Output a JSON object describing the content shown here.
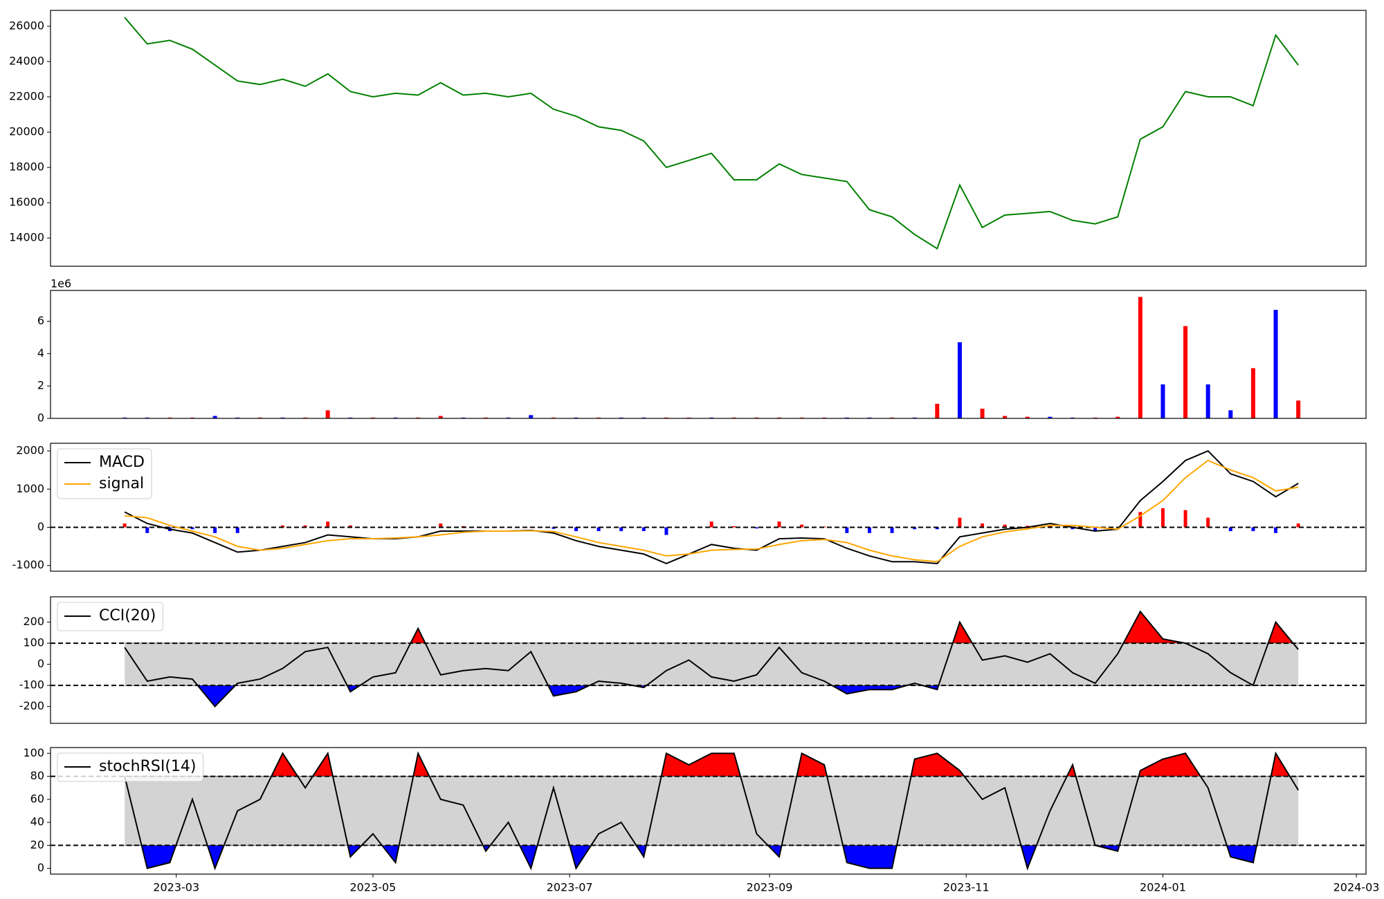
{
  "chart_data": [
    {
      "type": "line",
      "color": "green",
      "x": [
        "2023-02-13",
        "2023-02-20",
        "2023-02-27",
        "2023-03-06",
        "2023-03-13",
        "2023-03-20",
        "2023-03-27",
        "2023-04-03",
        "2023-04-10",
        "2023-04-17",
        "2023-04-24",
        "2023-05-01",
        "2023-05-08",
        "2023-05-15",
        "2023-05-22",
        "2023-05-29",
        "2023-06-05",
        "2023-06-12",
        "2023-06-19",
        "2023-06-26",
        "2023-07-03",
        "2023-07-10",
        "2023-07-17",
        "2023-07-24",
        "2023-07-31",
        "2023-08-07",
        "2023-08-14",
        "2023-08-21",
        "2023-08-28",
        "2023-09-04",
        "2023-09-11",
        "2023-09-18",
        "2023-09-25",
        "2023-10-02",
        "2023-10-09",
        "2023-10-16",
        "2023-10-23",
        "2023-10-30",
        "2023-11-06",
        "2023-11-13",
        "2023-11-20",
        "2023-11-27",
        "2023-12-04",
        "2023-12-11",
        "2023-12-18",
        "2023-12-25",
        "2024-01-01",
        "2024-01-08",
        "2024-01-15",
        "2024-01-22",
        "2024-01-29",
        "2024-02-05",
        "2024-02-12"
      ],
      "values": [
        26500,
        25000,
        25200,
        24700,
        23800,
        22900,
        22700,
        23000,
        22600,
        23300,
        22300,
        22000,
        22200,
        22100,
        22800,
        22100,
        22200,
        22000,
        22200,
        21300,
        20900,
        20300,
        20100,
        19500,
        18000,
        18400,
        18800,
        17300,
        17300,
        18200,
        17600,
        17400,
        17200,
        15600,
        15200,
        14200,
        13400,
        17000,
        14600,
        15300,
        15400,
        15500,
        15000,
        14800,
        15200,
        19600,
        20300,
        22300,
        22000,
        22000,
        21500,
        25500,
        23800
      ],
      "xlim": [
        "2023-01-21",
        "2024-03-04"
      ],
      "ylim": [
        12400,
        26900
      ],
      "yticks": [
        14000,
        16000,
        18000,
        20000,
        22000,
        24000,
        26000
      ]
    },
    {
      "type": "bar",
      "offset_label": "1e6",
      "x": [
        "2023-02-13",
        "2023-02-20",
        "2023-02-27",
        "2023-03-06",
        "2023-03-13",
        "2023-03-20",
        "2023-03-27",
        "2023-04-03",
        "2023-04-10",
        "2023-04-17",
        "2023-04-24",
        "2023-05-01",
        "2023-05-08",
        "2023-05-15",
        "2023-05-22",
        "2023-05-29",
        "2023-06-05",
        "2023-06-12",
        "2023-06-19",
        "2023-06-26",
        "2023-07-03",
        "2023-07-10",
        "2023-07-17",
        "2023-07-24",
        "2023-07-31",
        "2023-08-07",
        "2023-08-14",
        "2023-08-21",
        "2023-08-28",
        "2023-09-04",
        "2023-09-11",
        "2023-09-18",
        "2023-09-25",
        "2023-10-02",
        "2023-10-09",
        "2023-10-16",
        "2023-10-23",
        "2023-10-30",
        "2023-11-06",
        "2023-11-13",
        "2023-11-20",
        "2023-11-27",
        "2023-12-04",
        "2023-12-11",
        "2023-12-18",
        "2023-12-25",
        "2024-01-01",
        "2024-01-08",
        "2024-01-15",
        "2024-01-22",
        "2024-01-29",
        "2024-02-05",
        "2024-02-12"
      ],
      "values": [
        0.05,
        0.05,
        0.05,
        0.05,
        0.15,
        0.05,
        0.05,
        0.05,
        0.05,
        0.5,
        0.05,
        0.05,
        0.05,
        0.05,
        0.15,
        0.05,
        0.05,
        0.05,
        0.2,
        0.05,
        0.05,
        0.05,
        0.05,
        0.05,
        0.05,
        0.05,
        0.05,
        0.05,
        0.05,
        0.05,
        0.05,
        0.05,
        0.05,
        0.05,
        0.05,
        0.05,
        0.9,
        4.7,
        0.6,
        0.15,
        0.1,
        0.1,
        0.05,
        0.05,
        0.1,
        7.5,
        2.1,
        5.7,
        2.1,
        0.5,
        3.1,
        6.7,
        1.1
      ],
      "colors": [
        "blue",
        "blue",
        "red",
        "red",
        "blue",
        "blue",
        "red",
        "blue",
        "red",
        "red",
        "blue",
        "red",
        "blue",
        "red",
        "red",
        "blue",
        "red",
        "blue",
        "blue",
        "red",
        "blue",
        "red",
        "blue",
        "blue",
        "red",
        "red",
        "blue",
        "red",
        "red",
        "red",
        "red",
        "red",
        "blue",
        "blue",
        "red",
        "blue",
        "red",
        "blue",
        "red",
        "red",
        "red",
        "blue",
        "blue",
        "red",
        "red",
        "red",
        "blue",
        "red",
        "blue",
        "blue",
        "red",
        "blue",
        "red"
      ],
      "xlim": [
        "2023-01-21",
        "2024-03-04"
      ],
      "ylim": [
        0,
        7.9
      ],
      "yticks": [
        0,
        2,
        4,
        6
      ]
    },
    {
      "type": "line",
      "x": [
        "2023-02-13",
        "2023-02-20",
        "2023-02-27",
        "2023-03-06",
        "2023-03-13",
        "2023-03-20",
        "2023-03-27",
        "2023-04-03",
        "2023-04-10",
        "2023-04-17",
        "2023-04-24",
        "2023-05-01",
        "2023-05-08",
        "2023-05-15",
        "2023-05-22",
        "2023-05-29",
        "2023-06-05",
        "2023-06-12",
        "2023-06-19",
        "2023-06-26",
        "2023-07-03",
        "2023-07-10",
        "2023-07-17",
        "2023-07-24",
        "2023-07-31",
        "2023-08-07",
        "2023-08-14",
        "2023-08-21",
        "2023-08-28",
        "2023-09-04",
        "2023-09-11",
        "2023-09-18",
        "2023-09-25",
        "2023-10-02",
        "2023-10-09",
        "2023-10-16",
        "2023-10-23",
        "2023-10-30",
        "2023-11-06",
        "2023-11-13",
        "2023-11-20",
        "2023-11-27",
        "2023-12-04",
        "2023-12-11",
        "2023-12-18",
        "2023-12-25",
        "2024-01-01",
        "2024-01-08",
        "2024-01-15",
        "2024-01-22",
        "2024-01-29",
        "2024-02-05",
        "2024-02-12"
      ],
      "series": [
        {
          "name": "MACD",
          "color": "black",
          "values": [
            400,
            100,
            -50,
            -150,
            -400,
            -650,
            -600,
            -500,
            -400,
            -200,
            -250,
            -300,
            -300,
            -250,
            -100,
            -100,
            -100,
            -100,
            -80,
            -150,
            -350,
            -500,
            -600,
            -700,
            -950,
            -700,
            -450,
            -550,
            -600,
            -300,
            -280,
            -300,
            -550,
            -750,
            -900,
            -900,
            -950,
            -250,
            -150,
            -50,
            0,
            100,
            0,
            -100,
            -50,
            700,
            1200,
            1750,
            2000,
            1400,
            1200,
            800,
            1150
          ]
        },
        {
          "name": "signal",
          "color": "orange",
          "values": [
            300,
            250,
            50,
            -100,
            -250,
            -500,
            -600,
            -550,
            -450,
            -350,
            -300,
            -300,
            -280,
            -250,
            -200,
            -130,
            -100,
            -100,
            -90,
            -110,
            -250,
            -400,
            -500,
            -600,
            -750,
            -700,
            -600,
            -580,
            -570,
            -450,
            -350,
            -320,
            -400,
            -600,
            -750,
            -850,
            -900,
            -500,
            -250,
            -120,
            -40,
            50,
            50,
            0,
            -50,
            300,
            700,
            1300,
            1750,
            1500,
            1300,
            950,
            1050
          ]
        }
      ],
      "histogram": {
        "values": [
          100,
          -150,
          -100,
          -50,
          -150,
          -150,
          0,
          50,
          50,
          150,
          50,
          0,
          -20,
          0,
          100,
          30,
          0,
          0,
          10,
          -40,
          -100,
          -100,
          -100,
          -100,
          -200,
          0,
          150,
          30,
          -30,
          150,
          70,
          20,
          -150,
          -150,
          -150,
          -50,
          -50,
          250,
          100,
          70,
          40,
          50,
          -50,
          -100,
          0,
          400,
          500,
          450,
          250,
          -100,
          -100,
          -150,
          100
        ],
        "up_color": "red",
        "down_color": "blue"
      },
      "hlines": [
        0
      ],
      "legend": "upper left",
      "xlim": [
        "2023-01-21",
        "2024-03-04"
      ],
      "ylim": [
        -1150,
        2200
      ],
      "yticks": [
        -1000,
        0,
        1000,
        2000
      ]
    },
    {
      "type": "line",
      "x": [
        "2023-02-13",
        "2023-02-20",
        "2023-02-27",
        "2023-03-06",
        "2023-03-13",
        "2023-03-20",
        "2023-03-27",
        "2023-04-03",
        "2023-04-10",
        "2023-04-17",
        "2023-04-24",
        "2023-05-01",
        "2023-05-08",
        "2023-05-15",
        "2023-05-22",
        "2023-05-29",
        "2023-06-05",
        "2023-06-12",
        "2023-06-19",
        "2023-06-26",
        "2023-07-03",
        "2023-07-10",
        "2023-07-17",
        "2023-07-24",
        "2023-07-31",
        "2023-08-07",
        "2023-08-14",
        "2023-08-21",
        "2023-08-28",
        "2023-09-04",
        "2023-09-11",
        "2023-09-18",
        "2023-09-25",
        "2023-10-02",
        "2023-10-09",
        "2023-10-16",
        "2023-10-23",
        "2023-10-30",
        "2023-11-06",
        "2023-11-13",
        "2023-11-20",
        "2023-11-27",
        "2023-12-04",
        "2023-12-11",
        "2023-12-18",
        "2023-12-25",
        "2024-01-01",
        "2024-01-08",
        "2024-01-15",
        "2024-01-22",
        "2024-01-29",
        "2024-02-05",
        "2024-02-12"
      ],
      "series": [
        {
          "name": "CCI(20)",
          "color": "black",
          "values": [
            80,
            -80,
            -60,
            -70,
            -200,
            -90,
            -70,
            -20,
            60,
            80,
            -130,
            -60,
            -40,
            170,
            -50,
            -30,
            -20,
            -30,
            60,
            -150,
            -130,
            -80,
            -90,
            -110,
            -30,
            20,
            -60,
            -80,
            -50,
            80,
            -40,
            -80,
            -140,
            -120,
            -120,
            -90,
            -120,
            200,
            20,
            40,
            10,
            50,
            -40,
            -90,
            50,
            250,
            120,
            100,
            50,
            -40,
            -100,
            200,
            70
          ]
        }
      ],
      "bands": {
        "upper": 100,
        "lower": -100,
        "upper_color": "red",
        "lower_color": "blue",
        "band_color": "lightgray"
      },
      "legend": "upper left",
      "xlim": [
        "2023-01-21",
        "2024-03-04"
      ],
      "ylim": [
        -280,
        320
      ],
      "yticks": [
        -200,
        -100,
        0,
        100,
        200
      ]
    },
    {
      "type": "line",
      "x": [
        "2023-02-13",
        "2023-02-20",
        "2023-02-27",
        "2023-03-06",
        "2023-03-13",
        "2023-03-20",
        "2023-03-27",
        "2023-04-03",
        "2023-04-10",
        "2023-04-17",
        "2023-04-24",
        "2023-05-01",
        "2023-05-08",
        "2023-05-15",
        "2023-05-22",
        "2023-05-29",
        "2023-06-05",
        "2023-06-12",
        "2023-06-19",
        "2023-06-26",
        "2023-07-03",
        "2023-07-10",
        "2023-07-17",
        "2023-07-24",
        "2023-07-31",
        "2023-08-07",
        "2023-08-14",
        "2023-08-21",
        "2023-08-28",
        "2023-09-04",
        "2023-09-11",
        "2023-09-18",
        "2023-09-25",
        "2023-10-02",
        "2023-10-09",
        "2023-10-16",
        "2023-10-23",
        "2023-10-30",
        "2023-11-06",
        "2023-11-13",
        "2023-11-20",
        "2023-11-27",
        "2023-12-04",
        "2023-12-11",
        "2023-12-18",
        "2023-12-25",
        "2024-01-01",
        "2024-01-08",
        "2024-01-15",
        "2024-01-22",
        "2024-01-29",
        "2024-02-05",
        "2024-02-12"
      ],
      "series": [
        {
          "name": "stochRSI(14)",
          "color": "black",
          "values": [
            80,
            0,
            5,
            60,
            0,
            50,
            60,
            100,
            70,
            100,
            10,
            30,
            5,
            100,
            60,
            55,
            15,
            40,
            0,
            70,
            0,
            30,
            40,
            10,
            100,
            90,
            100,
            100,
            30,
            10,
            100,
            90,
            5,
            0,
            0,
            95,
            100,
            85,
            60,
            70,
            0,
            50,
            90,
            20,
            15,
            85,
            95,
            100,
            70,
            10,
            5,
            100,
            68
          ]
        }
      ],
      "bands": {
        "upper": 80,
        "lower": 20,
        "upper_color": "red",
        "lower_color": "blue",
        "band_color": "lightgray"
      },
      "legend": "upper left",
      "xlim": [
        "2023-01-21",
        "2024-03-04"
      ],
      "ylim": [
        -5,
        105
      ],
      "yticks": [
        0,
        20,
        40,
        60,
        80,
        100
      ],
      "xticks": [
        {
          "value": "2023-03-01",
          "label": "2023-03"
        },
        {
          "value": "2023-05-01",
          "label": "2023-05"
        },
        {
          "value": "2023-07-01",
          "label": "2023-07"
        },
        {
          "value": "2023-09-01",
          "label": "2023-09"
        },
        {
          "value": "2023-11-01",
          "label": "2023-11"
        },
        {
          "value": "2024-01-01",
          "label": "2024-01"
        },
        {
          "value": "2024-03-01",
          "label": "2024-03"
        }
      ]
    }
  ]
}
